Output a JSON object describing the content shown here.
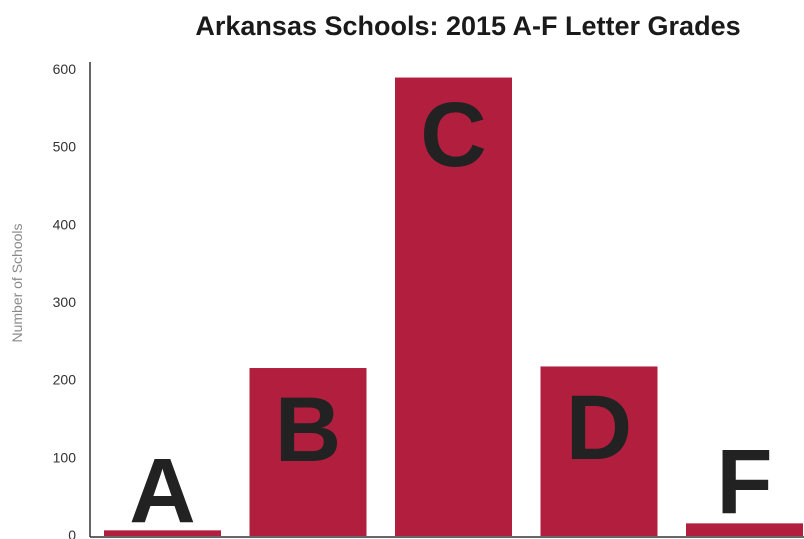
{
  "chart_data": {
    "type": "bar",
    "title": "Arkansas Schools: 2015 A-F Letter Grades",
    "ylabel": "Number of Schools",
    "xlabel": "",
    "categories": [
      "A",
      "B",
      "C",
      "D",
      "F"
    ],
    "values": [
      6,
      215,
      589,
      217,
      15
    ],
    "ylim": [
      0,
      600
    ],
    "yticks": [
      "0",
      "100",
      "200",
      "300",
      "400",
      "500",
      "600"
    ],
    "grid": false,
    "bar_color": "#b21f3e",
    "grade_color": "#222222"
  }
}
